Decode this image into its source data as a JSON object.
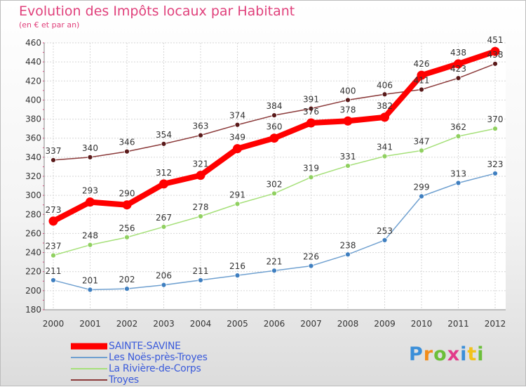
{
  "title": "Evolution des Impôts locaux par Habitant",
  "subtitle": "(en € et par an)",
  "logo_text": "Proxiti",
  "chart_data": {
    "type": "line",
    "title": "Evolution des Impôts locaux par Habitant",
    "subtitle": "(en € et par an)",
    "xlabel": "",
    "ylabel": "",
    "categories": [
      "2000",
      "2001",
      "2002",
      "2003",
      "2004",
      "2005",
      "2006",
      "2007",
      "2008",
      "2009",
      "2010",
      "2011",
      "2012"
    ],
    "ylim": [
      180,
      460
    ],
    "yticks": [
      180,
      200,
      220,
      240,
      260,
      280,
      300,
      320,
      340,
      360,
      380,
      400,
      420,
      440,
      460
    ],
    "grid": true,
    "legend_position": "bottom-left",
    "series": [
      {
        "name": "SAINTE-SAVINE",
        "color": "#ff0000",
        "marker_color": "#ff0000",
        "values": [
          273,
          293,
          290,
          312,
          321,
          349,
          360,
          376,
          378,
          382,
          426,
          438,
          451
        ]
      },
      {
        "name": "Les Noës-près-Troyes",
        "color": "#6fa0d0",
        "marker_color": "#3f7fc0",
        "values": [
          211,
          201,
          202,
          206,
          211,
          216,
          221,
          226,
          238,
          253,
          299,
          313,
          323
        ]
      },
      {
        "name": "La Rivière-de-Corps",
        "color": "#a6e07a",
        "marker_color": "#90d060",
        "values": [
          237,
          248,
          256,
          267,
          278,
          291,
          302,
          319,
          331,
          341,
          347,
          362,
          370
        ]
      },
      {
        "name": "Troyes",
        "color": "#8b3a3a",
        "marker_color": "#5a1a1a",
        "values": [
          337,
          340,
          346,
          354,
          363,
          374,
          384,
          391,
          400,
          406,
          411,
          423,
          438
        ]
      }
    ]
  }
}
